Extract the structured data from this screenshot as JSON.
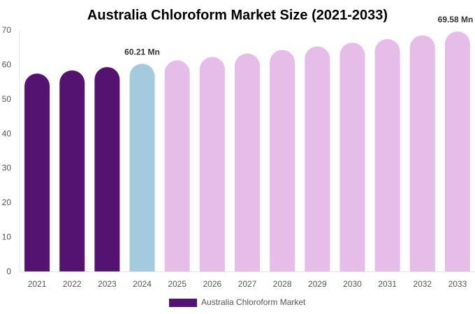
{
  "chart_data": {
    "type": "bar",
    "title": "Australia Chloroform Market Size (2021-2033)",
    "xlabel": "",
    "ylabel": "",
    "ylim": [
      0,
      70
    ],
    "yticks": [
      0,
      10,
      20,
      30,
      40,
      50,
      60,
      70
    ],
    "grid": false,
    "legend_position": "bottom",
    "categories": [
      "2021",
      "2022",
      "2023",
      "2024",
      "2025",
      "2026",
      "2027",
      "2028",
      "2029",
      "2030",
      "2031",
      "2032",
      "2033"
    ],
    "series": [
      {
        "name": "Australia Chloroform Market",
        "values": [
          57.37,
          58.3,
          59.25,
          60.21,
          61.19,
          62.18,
          63.18,
          64.21,
          65.25,
          66.3,
          67.38,
          68.47,
          69.58
        ],
        "colors": [
          "#541370",
          "#541370",
          "#541370",
          "#a3cadf",
          "#e6bde9",
          "#e6bde9",
          "#e6bde9",
          "#e6bde9",
          "#e6bde9",
          "#e6bde9",
          "#e6bde9",
          "#e6bde9",
          "#e6bde9"
        ]
      }
    ],
    "legend_color": "#541370",
    "data_labels": [
      {
        "category": "2024",
        "text": "60.21 Mn"
      },
      {
        "category": "2033",
        "text": "69.58 Mn"
      }
    ]
  }
}
